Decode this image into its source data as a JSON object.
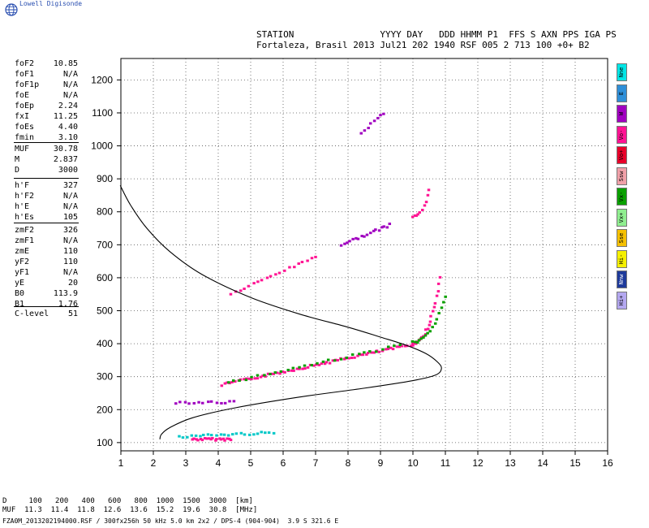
{
  "brand": "Lowell Digisonde",
  "header": {
    "line1": "STATION                YYYY DAY   DDD HHMM P1  FFS S AXN PPS IGA PS",
    "line2": "Fortaleza, Brasil 2013 Jul21 202 1940 RSF 005 2 713 100 +0+ B2"
  },
  "params": {
    "group1": [
      {
        "label": "foF2",
        "value": "10.85"
      },
      {
        "label": "foF1",
        "value": "N/A"
      },
      {
        "label": "foF1p",
        "value": "N/A"
      },
      {
        "label": "foE",
        "value": "N/A"
      },
      {
        "label": "foEp",
        "value": "2.24"
      },
      {
        "label": "fxI",
        "value": "11.25"
      },
      {
        "label": "foEs",
        "value": "4.40"
      },
      {
        "label": "fmin",
        "value": "3.10"
      }
    ],
    "group2": [
      {
        "label": "MUF",
        "value": "30.78"
      },
      {
        "label": "M",
        "value": "2.837"
      },
      {
        "label": "D",
        "value": "3000"
      }
    ],
    "group3": [
      {
        "label": "h'F",
        "value": "327"
      },
      {
        "label": "h'F2",
        "value": "N/A"
      },
      {
        "label": "h'E",
        "value": "N/A"
      },
      {
        "label": "h'Es",
        "value": "105"
      }
    ],
    "group4": [
      {
        "label": "zmF2",
        "value": "326"
      },
      {
        "label": "zmF1",
        "value": "N/A"
      },
      {
        "label": "zmE",
        "value": "110"
      },
      {
        "label": "yF2",
        "value": "110"
      },
      {
        "label": "yF1",
        "value": "N/A"
      },
      {
        "label": "yE",
        "value": "20"
      },
      {
        "label": "B0",
        "value": "113.9"
      },
      {
        "label": "B1",
        "value": "1.76"
      }
    ],
    "group5": [
      {
        "label": "C-level",
        "value": "51"
      }
    ]
  },
  "legend": [
    {
      "label": "Nne",
      "color": "#00e5e5"
    },
    {
      "label": "E",
      "color": "#2f8fd8"
    },
    {
      "label": "W",
      "color": "#a000c0"
    },
    {
      "label": "Vo-",
      "color": "#ff1493"
    },
    {
      "label": "Vo+",
      "color": "#e8002a"
    },
    {
      "label": "Ssw",
      "color": "#f0a0a8"
    },
    {
      "label": "Vx-",
      "color": "#0aa000"
    },
    {
      "label": "Vx+",
      "color": "#90ee90"
    },
    {
      "label": "Sse",
      "color": "#f5c000"
    },
    {
      "label": "Hi-",
      "color": "#f5f000"
    },
    {
      "label": "Nnw",
      "color": "#1e3a9a"
    },
    {
      "label": "Hi+",
      "color": "#b4a8f0"
    }
  ],
  "bottom": {
    "line1": "D     100   200   400   600   800  1000  1500  3000  [km]",
    "line2": "MUF  11.3  11.4  11.8  12.6  13.6  15.2  19.6  30.8  [MHz]",
    "line3": "FZA0M_2013202194000.RSF / 300fx256h 50 kHz 5.0 km 2x2 / DPS-4 (904-904)  3.9 S 321.6 E"
  },
  "chart_data": {
    "type": "scatter",
    "x_ticks": [
      "1",
      "2",
      "3",
      "4",
      "5",
      "6",
      "7",
      "8",
      "9",
      "10",
      "11",
      "12",
      "13",
      "14",
      "15",
      "16"
    ],
    "y_ticks": [
      "100",
      "200",
      "300",
      "400",
      "500",
      "600",
      "700",
      "800",
      "900",
      "1000",
      "1100",
      "1200"
    ],
    "xlim": [
      1,
      16
    ],
    "ylim": [
      75,
      1265
    ],
    "grid": true,
    "profile_curve": [
      {
        "x": 0.98,
        "y": 880
      },
      {
        "x": 1.3,
        "y": 820
      },
      {
        "x": 1.8,
        "y": 750
      },
      {
        "x": 2.5,
        "y": 680
      },
      {
        "x": 3.5,
        "y": 610
      },
      {
        "x": 5,
        "y": 540
      },
      {
        "x": 6.5,
        "y": 490
      },
      {
        "x": 8,
        "y": 450
      },
      {
        "x": 9,
        "y": 420
      },
      {
        "x": 9.8,
        "y": 395
      },
      {
        "x": 10.4,
        "y": 370
      },
      {
        "x": 10.75,
        "y": 345
      },
      {
        "x": 10.88,
        "y": 325
      },
      {
        "x": 10.7,
        "y": 305
      },
      {
        "x": 10,
        "y": 288
      },
      {
        "x": 8.5,
        "y": 265
      },
      {
        "x": 6.5,
        "y": 238
      },
      {
        "x": 4.5,
        "y": 205
      },
      {
        "x": 3.2,
        "y": 175
      },
      {
        "x": 2.5,
        "y": 145
      },
      {
        "x": 2.25,
        "y": 125
      },
      {
        "x": 2.2,
        "y": 110
      }
    ],
    "echo_traces": [
      {
        "color": "#ff1493",
        "x0": 3.2,
        "x1": 4.4,
        "y0": 110,
        "y1": 110,
        "n": 20
      },
      {
        "color": "#00c8c8",
        "x0": 2.8,
        "x1": 5.7,
        "y0": 118,
        "y1": 130,
        "n": 24
      },
      {
        "color": "#a000c0",
        "x0": 2.7,
        "x1": 4.5,
        "y0": 222,
        "y1": 222,
        "n": 14
      },
      {
        "color": "#ff1493",
        "x0": 4.1,
        "x1": 10.0,
        "y0": 275,
        "y1": 398,
        "n": 70
      },
      {
        "color": "#0aa000",
        "x0": 4.3,
        "x1": 9.6,
        "y0": 282,
        "y1": 395,
        "n": 30
      },
      {
        "color": "#ff1493",
        "x0": 10.0,
        "x1": 10.85,
        "y0": 400,
        "y1": 600,
        "n": 22
      },
      {
        "color": "#0aa000",
        "x0": 10.0,
        "x1": 11.0,
        "y0": 405,
        "y1": 545,
        "n": 16
      },
      {
        "color": "#ff1493",
        "x0": 4.4,
        "x1": 7.0,
        "y0": 550,
        "y1": 665,
        "n": 20
      },
      {
        "color": "#a000c0",
        "x0": 7.8,
        "x1": 9.3,
        "y0": 700,
        "y1": 760,
        "n": 18
      },
      {
        "color": "#ff1493",
        "x0": 10.0,
        "x1": 10.5,
        "y0": 785,
        "y1": 865,
        "n": 10
      },
      {
        "color": "#a000c0",
        "x0": 8.4,
        "x1": 9.1,
        "y0": 1040,
        "y1": 1100,
        "n": 8
      }
    ]
  }
}
